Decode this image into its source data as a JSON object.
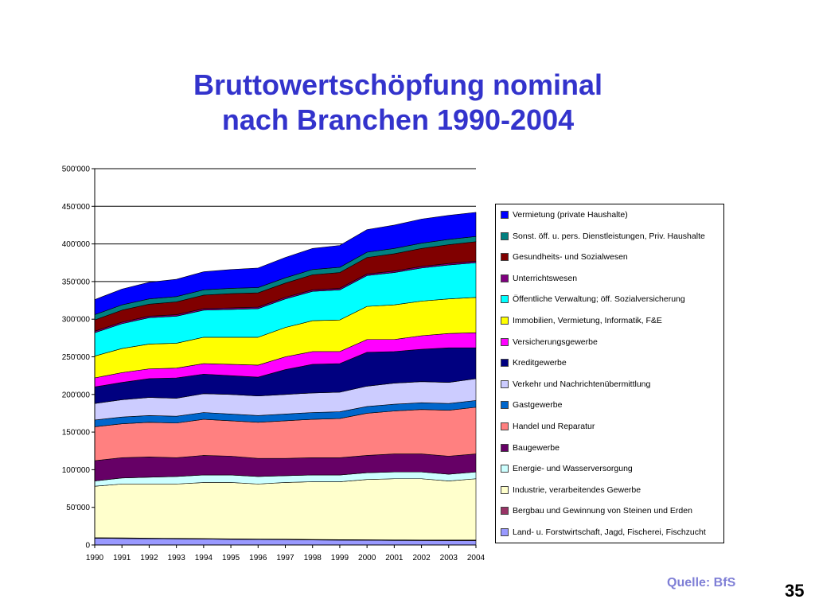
{
  "title_line1": "Bruttowertschöpfung nominal",
  "title_line2": "nach Branchen 1990-2004",
  "source": "Quelle: BfS",
  "page_number": "35",
  "chart_data": {
    "type": "area",
    "stacked": true,
    "x": [
      "1990",
      "1991",
      "1992",
      "1993",
      "1994",
      "1995",
      "1996",
      "1997",
      "1998",
      "1999",
      "2000",
      "2001",
      "2002",
      "2003",
      "2004"
    ],
    "y_tick_labels": [
      "0",
      "50'000",
      "100'000",
      "150'000",
      "200'000",
      "250'000",
      "300'000",
      "350'000",
      "400'000",
      "450'000",
      "500'000"
    ],
    "ylim": [
      0,
      500000
    ],
    "grid": true,
    "legend_position": "right",
    "series": [
      {
        "name": "Land- u. Forstwirtschaft, Jagd, Fischerei, Fischzucht",
        "color": "#9999ff",
        "values": [
          9000,
          8700,
          8400,
          8100,
          7800,
          7500,
          7200,
          7000,
          6700,
          6400,
          6200,
          6000,
          5900,
          5800,
          5800
        ]
      },
      {
        "name": "Bergbau und Gewinnung von Steinen und Erden",
        "color": "#993366",
        "values": [
          700,
          700,
          700,
          700,
          700,
          700,
          700,
          700,
          700,
          700,
          700,
          700,
          700,
          700,
          700
        ]
      },
      {
        "name": "Industrie, verarbeitendes Gewerbe",
        "color": "#ffffcc",
        "values": [
          68300,
          71600,
          71900,
          72200,
          74500,
          74800,
          73100,
          75300,
          76600,
          76900,
          80100,
          81300,
          81400,
          78500,
          81500
        ]
      },
      {
        "name": "Energie- und Wasserversorgung",
        "color": "#ccffff",
        "values": [
          7000,
          8000,
          9000,
          10000,
          10000,
          10000,
          10000,
          9000,
          9000,
          9000,
          9000,
          9000,
          9000,
          9000,
          9000
        ]
      },
      {
        "name": "Baugewerbe",
        "color": "#660066",
        "values": [
          27000,
          27000,
          27000,
          25000,
          26000,
          25000,
          24000,
          23000,
          23000,
          23000,
          23000,
          24000,
          24000,
          24000,
          24000
        ]
      },
      {
        "name": "Handel und Reparatur",
        "color": "#ff8080",
        "values": [
          45000,
          45000,
          46000,
          46000,
          48000,
          47000,
          48000,
          50000,
          51000,
          52000,
          56000,
          57000,
          59000,
          61000,
          62000
        ]
      },
      {
        "name": "Gastgewerbe",
        "color": "#0066cc",
        "values": [
          9000,
          9000,
          9000,
          9000,
          9000,
          9000,
          9000,
          9000,
          9000,
          9000,
          9000,
          9000,
          9000,
          9000,
          9000
        ]
      },
      {
        "name": "Verkehr und Nachrichtenübermittlung",
        "color": "#ccccff",
        "values": [
          22000,
          23000,
          24000,
          24000,
          25000,
          26000,
          26000,
          26000,
          26000,
          26000,
          27000,
          28000,
          28000,
          28000,
          29000
        ]
      },
      {
        "name": "Kreditgewerbe",
        "color": "#000080",
        "values": [
          22000,
          23000,
          25000,
          27000,
          26000,
          25000,
          25000,
          33000,
          38000,
          38000,
          45000,
          42000,
          43000,
          46000,
          41000
        ]
      },
      {
        "name": "Versicherungsgewerbe",
        "color": "#ff00ff",
        "values": [
          12000,
          13000,
          13000,
          13000,
          14000,
          15000,
          16000,
          17000,
          17000,
          16000,
          17000,
          16000,
          18000,
          19000,
          20000
        ]
      },
      {
        "name": "Immobilien, Vermietung, Informatik, F&E",
        "color": "#ffff00",
        "values": [
          29000,
          32000,
          33000,
          33000,
          35000,
          36000,
          37000,
          39000,
          41000,
          42000,
          44000,
          46000,
          46000,
          46000,
          47000
        ]
      },
      {
        "name": "Öffentliche Verwaltung; öff. Sozialversicherung",
        "color": "#00ffff",
        "values": [
          31000,
          33000,
          35000,
          36000,
          36000,
          37000,
          38000,
          38000,
          39000,
          40000,
          41000,
          43000,
          44000,
          45000,
          46000
        ]
      },
      {
        "name": "Unterrichtswesen",
        "color": "#800080",
        "values": [
          2000,
          2000,
          2000,
          2000,
          2000,
          2000,
          2000,
          2000,
          2000,
          2000,
          2000,
          2000,
          2000,
          2000,
          2000
        ]
      },
      {
        "name": "Gesundheits- und Sozialwesen",
        "color": "#800000",
        "values": [
          15000,
          16000,
          16000,
          17000,
          18000,
          19000,
          19000,
          19000,
          20000,
          21000,
          22000,
          23000,
          24000,
          25000,
          26000
        ]
      },
      {
        "name": "Sonst. öff. u. pers. Dienstleistungen, Priv. Haushalte",
        "color": "#008080",
        "values": [
          7000,
          7000,
          7000,
          7000,
          7000,
          7000,
          7000,
          7000,
          7000,
          7000,
          7000,
          7000,
          7000,
          7000,
          7000
        ]
      },
      {
        "name": "Vermietung (private Haushalte)",
        "color": "#0000ff",
        "values": [
          20000,
          21000,
          22000,
          23000,
          24000,
          25000,
          26000,
          27000,
          28000,
          29000,
          30000,
          31000,
          32000,
          32000,
          32000
        ]
      }
    ]
  }
}
